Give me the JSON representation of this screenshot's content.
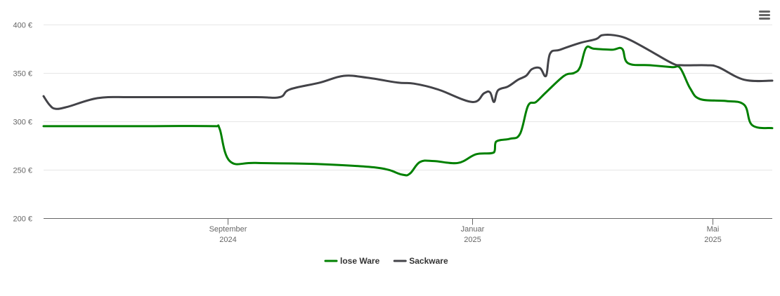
{
  "chart_data": {
    "type": "line",
    "title": "",
    "xlabel": "",
    "ylabel": "",
    "y_unit": "€",
    "ylim": [
      200,
      400
    ],
    "y_ticks": [
      {
        "value": 200,
        "label": "200 €"
      },
      {
        "value": 250,
        "label": "250 €"
      },
      {
        "value": 300,
        "label": "300 €"
      },
      {
        "value": 350,
        "label": "350 €"
      },
      {
        "value": 400,
        "label": "400 €"
      }
    ],
    "xlim": [
      "2024-06-01",
      "2025-05-31"
    ],
    "x_ticks": [
      {
        "date": "2024-09-01",
        "month": "September",
        "year": "2024"
      },
      {
        "date": "2025-01-01",
        "month": "Januar",
        "year": "2025"
      },
      {
        "date": "2025-05-01",
        "month": "Mai",
        "year": "2025"
      }
    ],
    "grid": true,
    "legend_position": "bottom-center",
    "series": [
      {
        "name": "lose Ware",
        "color": "#008000",
        "points": [
          [
            "2024-06-01",
            295
          ],
          [
            "2024-07-15",
            295
          ],
          [
            "2024-08-26",
            295
          ],
          [
            "2024-08-28",
            292
          ],
          [
            "2024-09-02",
            259
          ],
          [
            "2024-09-15",
            257
          ],
          [
            "2024-10-15",
            256
          ],
          [
            "2024-11-15",
            252
          ],
          [
            "2024-11-27",
            245
          ],
          [
            "2024-12-01",
            246
          ],
          [
            "2024-12-06",
            258
          ],
          [
            "2024-12-13",
            259
          ],
          [
            "2024-12-25",
            257
          ],
          [
            "2025-01-03",
            266
          ],
          [
            "2025-01-12",
            268
          ],
          [
            "2025-01-13",
            279
          ],
          [
            "2025-01-20",
            282
          ],
          [
            "2025-01-25",
            287
          ],
          [
            "2025-01-29",
            316
          ],
          [
            "2025-02-02",
            320
          ],
          [
            "2025-02-07",
            330
          ],
          [
            "2025-02-16",
            347
          ],
          [
            "2025-02-21",
            350
          ],
          [
            "2025-02-24",
            356
          ],
          [
            "2025-02-27",
            376
          ],
          [
            "2025-03-03",
            375
          ],
          [
            "2025-03-12",
            374
          ],
          [
            "2025-03-17",
            375
          ],
          [
            "2025-03-20",
            360
          ],
          [
            "2025-03-31",
            358
          ],
          [
            "2025-04-11",
            356
          ],
          [
            "2025-04-15",
            355
          ],
          [
            "2025-04-20",
            334
          ],
          [
            "2025-04-25",
            323
          ],
          [
            "2025-05-08",
            321
          ],
          [
            "2025-05-17",
            317
          ],
          [
            "2025-05-21",
            296
          ],
          [
            "2025-05-31",
            293
          ]
        ]
      },
      {
        "name": "Sackware",
        "color": "#434348",
        "points": [
          [
            "2024-06-01",
            326
          ],
          [
            "2024-06-04",
            317
          ],
          [
            "2024-06-07",
            313
          ],
          [
            "2024-06-13",
            315
          ],
          [
            "2024-06-28",
            324
          ],
          [
            "2024-07-15",
            325
          ],
          [
            "2024-08-15",
            325
          ],
          [
            "2024-09-15",
            325
          ],
          [
            "2024-09-27",
            325
          ],
          [
            "2024-10-02",
            333
          ],
          [
            "2024-10-17",
            340
          ],
          [
            "2024-10-29",
            347
          ],
          [
            "2024-11-10",
            345
          ],
          [
            "2024-11-25",
            340
          ],
          [
            "2024-12-03",
            339
          ],
          [
            "2024-12-15",
            333
          ],
          [
            "2025-01-01",
            320
          ],
          [
            "2025-01-07",
            329
          ],
          [
            "2025-01-10",
            330
          ],
          [
            "2025-01-12",
            320
          ],
          [
            "2025-01-14",
            332
          ],
          [
            "2025-01-19",
            336
          ],
          [
            "2025-01-24",
            343
          ],
          [
            "2025-01-28",
            347
          ],
          [
            "2025-01-31",
            354
          ],
          [
            "2025-02-04",
            355
          ],
          [
            "2025-02-07",
            347
          ],
          [
            "2025-02-09",
            370
          ],
          [
            "2025-02-14",
            374
          ],
          [
            "2025-02-24",
            381
          ],
          [
            "2025-03-04",
            385
          ],
          [
            "2025-03-07",
            389
          ],
          [
            "2025-03-13",
            389
          ],
          [
            "2025-03-20",
            385
          ],
          [
            "2025-03-30",
            374
          ],
          [
            "2025-04-11",
            360
          ],
          [
            "2025-04-16",
            358
          ],
          [
            "2025-04-28",
            358
          ],
          [
            "2025-05-04",
            356
          ],
          [
            "2025-05-17",
            343
          ],
          [
            "2025-05-31",
            342
          ]
        ]
      }
    ]
  },
  "toolbar": {
    "menu_icon": "hamburger-menu-icon"
  }
}
